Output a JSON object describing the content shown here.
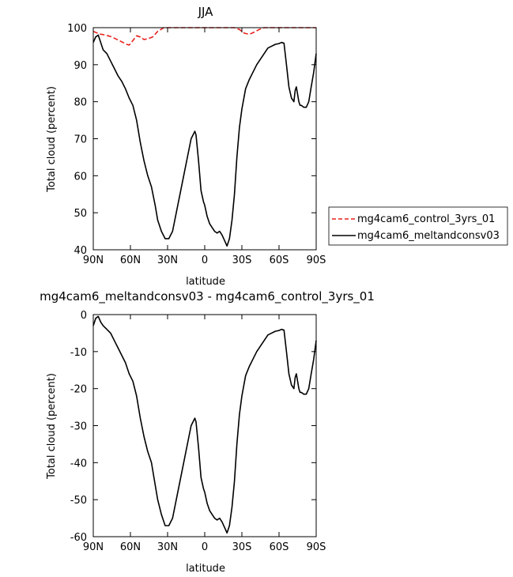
{
  "chart_data": [
    {
      "type": "line",
      "title": "JJA",
      "xlabel": "latitude",
      "ylabel": "Total cloud (percent)",
      "xlim": [
        90,
        -90
      ],
      "ylim": [
        40,
        100
      ],
      "xticks": [
        90,
        60,
        30,
        0,
        -30,
        -60,
        -90
      ],
      "xtick_labels": [
        "90N",
        "60N",
        "30N",
        "0",
        "30S",
        "60S",
        "90S"
      ],
      "yticks": [
        40,
        50,
        60,
        70,
        80,
        90,
        100
      ],
      "ytick_labels": [
        "40",
        "50",
        "60",
        "70",
        "80",
        "90",
        "100"
      ],
      "legend_position": "right",
      "series": [
        {
          "name": "mg4cam6_control_3yrs_01",
          "color": "#e8201c",
          "dash": "dashed",
          "x": [
            90,
            85,
            80,
            75,
            72,
            69,
            66,
            63,
            61,
            58,
            55,
            52,
            49,
            46,
            42,
            38,
            33,
            28,
            24,
            20,
            15,
            10,
            5,
            0,
            -5,
            -10,
            -15,
            -20,
            -24,
            -28,
            -32,
            -36,
            -40,
            -44,
            -48,
            -52,
            -56,
            -60,
            -70,
            -80,
            -90
          ],
          "y": [
            99,
            98.3,
            98,
            97.5,
            97,
            96.5,
            96,
            95.5,
            95.3,
            96.5,
            97.8,
            97.5,
            96.8,
            97,
            97.5,
            99,
            100,
            100,
            100,
            100,
            100,
            100,
            100,
            100,
            100,
            100,
            100,
            100,
            100,
            99.5,
            98.5,
            98.2,
            98.8,
            99.5,
            100,
            100,
            100,
            100,
            100,
            100,
            100
          ]
        },
        {
          "name": "mg4cam6_meltandconsv03",
          "color": "#000000",
          "dash": "solid",
          "x": [
            90,
            88,
            86,
            84,
            82,
            79,
            76,
            73,
            70,
            67,
            64,
            61,
            58,
            55,
            52,
            49,
            46,
            43,
            40,
            38,
            35,
            32,
            29,
            26,
            23,
            20,
            17,
            14,
            11,
            8,
            7,
            5,
            3,
            1,
            0,
            -2,
            -4,
            -6,
            -8,
            -10,
            -12,
            -14,
            -16,
            -18,
            -20,
            -22,
            -24,
            -26,
            -28,
            -30,
            -33,
            -36,
            -39,
            -42,
            -45,
            -48,
            -51,
            -54,
            -57,
            -60,
            -62,
            -64,
            -66,
            -68,
            -70,
            -72,
            -73,
            -74,
            -75,
            -76,
            -77,
            -78,
            -80,
            -82,
            -84,
            -86,
            -88,
            -90
          ],
          "y": [
            96,
            97.5,
            98,
            96,
            94,
            93,
            91,
            89,
            87,
            85.5,
            83.5,
            81,
            79,
            75,
            69,
            64,
            60,
            57,
            52,
            48,
            45,
            43,
            43,
            45,
            50,
            55,
            60,
            65,
            70,
            72,
            71,
            64,
            56,
            53,
            52,
            49,
            47,
            46,
            45,
            44.5,
            45,
            44,
            42.5,
            41,
            43,
            48,
            55,
            65,
            73,
            78,
            83.5,
            86,
            88,
            90,
            91.5,
            93,
            94.5,
            95,
            95.5,
            95.7,
            96,
            95.8,
            90,
            84,
            81,
            80,
            83,
            84,
            82,
            80,
            79,
            79,
            78.5,
            78.5,
            80,
            84,
            88,
            93
          ]
        }
      ]
    },
    {
      "type": "line",
      "title": "mg4cam6_meltandconsv03 - mg4cam6_control_3yrs_01",
      "xlabel": "latitude",
      "ylabel": "Total cloud (percent)",
      "xlim": [
        90,
        -90
      ],
      "ylim": [
        -60,
        0
      ],
      "xticks": [
        90,
        60,
        30,
        0,
        -30,
        -60,
        -90
      ],
      "xtick_labels": [
        "90N",
        "60N",
        "30N",
        "0",
        "30S",
        "60S",
        "90S"
      ],
      "yticks": [
        0,
        -10,
        -20,
        -30,
        -40,
        -50,
        -60
      ],
      "ytick_labels": [
        "0",
        "-10",
        "-20",
        "-30",
        "-40",
        "-50",
        "-60"
      ],
      "series": [
        {
          "color": "#000000",
          "dash": "solid",
          "x": [
            90,
            88,
            86,
            84,
            82,
            79,
            76,
            73,
            70,
            67,
            64,
            61,
            58,
            55,
            52,
            49,
            46,
            43,
            40,
            38,
            35,
            32,
            29,
            26,
            23,
            20,
            17,
            14,
            11,
            8,
            7,
            5,
            3,
            1,
            0,
            -2,
            -4,
            -6,
            -8,
            -10,
            -12,
            -14,
            -16,
            -18,
            -20,
            -22,
            -24,
            -26,
            -28,
            -30,
            -33,
            -36,
            -39,
            -42,
            -45,
            -48,
            -51,
            -54,
            -57,
            -60,
            -62,
            -64,
            -66,
            -68,
            -70,
            -72,
            -73,
            -74,
            -75,
            -76,
            -77,
            -78,
            -80,
            -82,
            -84,
            -86,
            -88,
            -90
          ],
          "y": [
            -3,
            -1,
            -0.5,
            -2,
            -3,
            -4,
            -5,
            -7,
            -9,
            -11,
            -13,
            -16,
            -18,
            -22,
            -28,
            -33,
            -37,
            -40,
            -46,
            -50,
            -54,
            -57,
            -57,
            -55,
            -50,
            -45,
            -40,
            -35,
            -30,
            -28,
            -29,
            -36,
            -44,
            -47,
            -48,
            -51,
            -53,
            -54,
            -55,
            -55.5,
            -55,
            -56,
            -57.5,
            -59,
            -57,
            -52,
            -45,
            -35,
            -27,
            -22,
            -16.5,
            -14,
            -12,
            -10,
            -8.5,
            -7,
            -5.5,
            -5,
            -4.5,
            -4.3,
            -4,
            -4.2,
            -10,
            -16,
            -19,
            -20,
            -17,
            -16,
            -18,
            -20,
            -21,
            -21,
            -21.5,
            -21.5,
            -20,
            -16,
            -12,
            -7
          ]
        }
      ]
    }
  ]
}
